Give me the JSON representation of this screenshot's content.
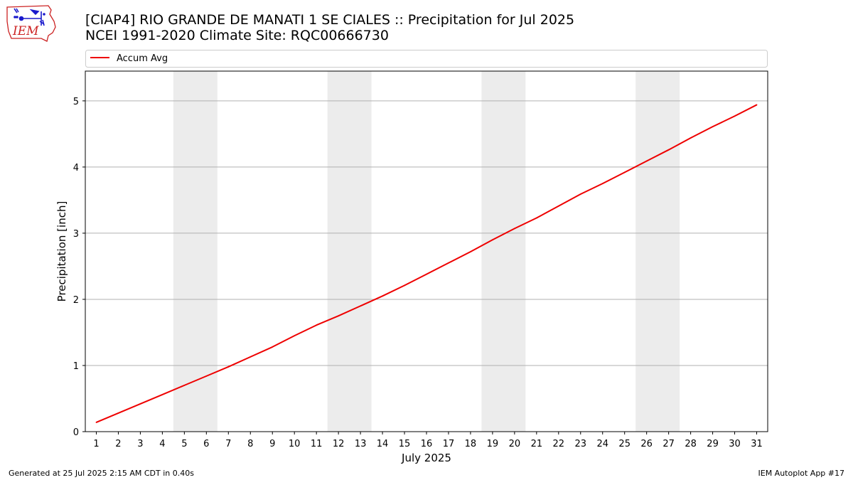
{
  "header": {
    "logo_text": "IEM",
    "title_line_1": "[CIAP4] RIO GRANDE DE MANATI 1 SE CIALES :: Precipitation for Jul 2025",
    "title_line_2": "NCEI 1991-2020 Climate Site: RQC00666730"
  },
  "footer": {
    "generated": "Generated at 25 Jul 2025 2:15 AM CDT in 0.40s",
    "app": "IEM Autoplot App #17"
  },
  "colors": {
    "series_line": "#ee0000",
    "weekend_band": "#ececec",
    "grid": "#b0b0b0",
    "logo_red": "#cc2222",
    "logo_blue": "#1a1acc"
  },
  "chart_data": {
    "type": "line",
    "title": "[CIAP4] RIO GRANDE DE MANATI 1 SE CIALES :: Precipitation for Jul 2025",
    "subtitle": "NCEI 1991-2020 Climate Site: RQC00666730",
    "xlabel": "July 2025",
    "ylabel": "Precipitation [inch]",
    "x": [
      1,
      2,
      3,
      4,
      5,
      6,
      7,
      8,
      9,
      10,
      11,
      12,
      13,
      14,
      15,
      16,
      17,
      18,
      19,
      20,
      21,
      22,
      23,
      24,
      25,
      26,
      27,
      28,
      29,
      30,
      31
    ],
    "x_tick_labels": [
      "1",
      "2",
      "3",
      "4",
      "5",
      "6",
      "7",
      "8",
      "9",
      "10",
      "11",
      "12",
      "13",
      "14",
      "15",
      "16",
      "17",
      "18",
      "19",
      "20",
      "21",
      "22",
      "23",
      "24",
      "25",
      "26",
      "27",
      "28",
      "29",
      "30",
      "31"
    ],
    "xlim": [
      0.5,
      31.5
    ],
    "ylim": [
      0,
      5.45
    ],
    "y_ticks": [
      0,
      1,
      2,
      3,
      4,
      5
    ],
    "y_tick_labels": [
      "0",
      "1",
      "2",
      "3",
      "4",
      "5"
    ],
    "grid": "horizontal",
    "legend_position": "top",
    "weekend_bands": [
      [
        5,
        6
      ],
      [
        12,
        13
      ],
      [
        19,
        20
      ],
      [
        26,
        27
      ]
    ],
    "series": [
      {
        "name": "Accum Avg",
        "values": [
          0.14,
          0.28,
          0.42,
          0.56,
          0.7,
          0.84,
          0.98,
          1.13,
          1.28,
          1.45,
          1.61,
          1.75,
          1.9,
          2.05,
          2.21,
          2.38,
          2.55,
          2.72,
          2.9,
          3.07,
          3.23,
          3.41,
          3.59,
          3.75,
          3.92,
          4.09,
          4.26,
          4.44,
          4.61,
          4.77,
          4.94
        ]
      }
    ]
  }
}
